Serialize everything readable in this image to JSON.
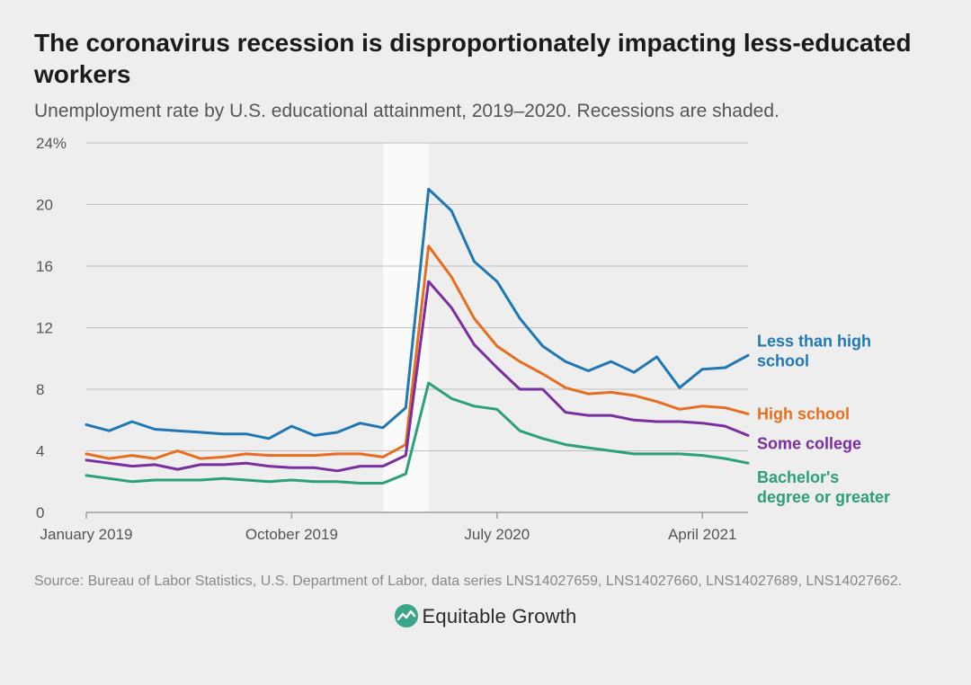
{
  "title": "The coronavirus recession is disproportionately impacting less-educated workers",
  "subtitle": "Unemployment rate by U.S. educational attainment, 2019–2020. Recessions are shaded.",
  "source": "Source: Bureau of Labor Statistics, U.S. Department of Labor, data series LNS14027659, LNS14027660, LNS14027689, LNS14027662.",
  "brand": "Equitable Growth",
  "chart": {
    "type": "line",
    "background_color": "#eeeeee",
    "recession_band_color": "#fafafa",
    "recession_band": {
      "start_index": 13,
      "end_index": 15
    },
    "grid_color": "#bdbdbd",
    "baseline_color": "#9e9e9e",
    "text_color": "#555555",
    "line_width": 3,
    "label_fontsize": 18,
    "tick_fontsize": 17,
    "ylim": [
      0,
      24
    ],
    "ytick_step": 4,
    "ytick_suffix_top": "%",
    "x_count": 30,
    "x_tick_labels": [
      {
        "index": 0,
        "label": "January 2019"
      },
      {
        "index": 9,
        "label": "October 2019"
      },
      {
        "index": 18,
        "label": "July 2020"
      },
      {
        "index": 27,
        "label": "April 2021"
      }
    ],
    "series": [
      {
        "id": "less_than_hs",
        "label": "Less than high school",
        "color": "#1f78b4",
        "values": [
          5.7,
          5.3,
          5.9,
          5.4,
          5.3,
          5.2,
          5.1,
          5.1,
          4.8,
          5.6,
          5.0,
          5.2,
          5.8,
          5.5,
          6.8,
          21.0,
          19.6,
          16.3,
          15.0,
          12.6,
          10.8,
          9.8,
          9.2,
          9.8,
          9.1,
          10.1,
          8.1,
          9.3,
          9.4,
          10.2
        ]
      },
      {
        "id": "high_school",
        "label": "High school",
        "color": "#e86e1f",
        "values": [
          3.8,
          3.5,
          3.7,
          3.5,
          4.0,
          3.5,
          3.6,
          3.8,
          3.7,
          3.7,
          3.7,
          3.8,
          3.8,
          3.6,
          4.4,
          17.3,
          15.3,
          12.6,
          10.8,
          9.8,
          9.0,
          8.1,
          7.7,
          7.8,
          7.6,
          7.2,
          6.7,
          6.9,
          6.8,
          6.4
        ]
      },
      {
        "id": "some_college",
        "label": "Some college",
        "color": "#7b2ea0",
        "values": [
          3.4,
          3.2,
          3.0,
          3.1,
          2.8,
          3.1,
          3.1,
          3.2,
          3.0,
          2.9,
          2.9,
          2.7,
          3.0,
          3.0,
          3.7,
          15.0,
          13.3,
          10.9,
          9.4,
          8.0,
          8.0,
          6.5,
          6.3,
          6.3,
          6.0,
          5.9,
          5.9,
          5.8,
          5.6,
          5.0
        ]
      },
      {
        "id": "bachelors_plus",
        "label": "Bachelor's degree or greater",
        "color": "#2ca076",
        "values": [
          2.4,
          2.2,
          2.0,
          2.1,
          2.1,
          2.1,
          2.2,
          2.1,
          2.0,
          2.1,
          2.0,
          2.0,
          1.9,
          1.9,
          2.5,
          8.4,
          7.4,
          6.9,
          6.7,
          5.3,
          4.8,
          4.4,
          4.2,
          4.0,
          3.8,
          3.8,
          3.8,
          3.7,
          3.5,
          3.2
        ]
      }
    ]
  },
  "brand_icon": {
    "bg": "#3aa58b",
    "line": "#ffffff"
  }
}
